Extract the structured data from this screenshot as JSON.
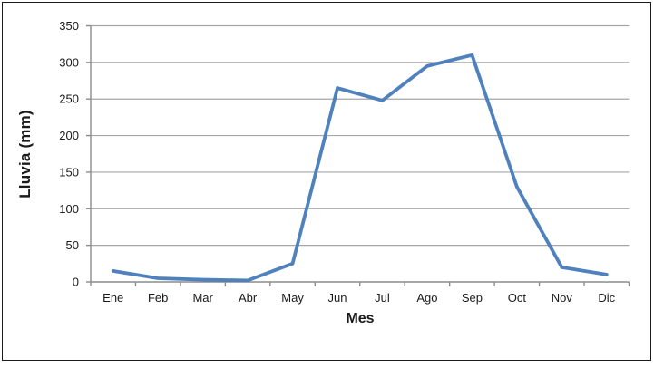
{
  "chart_data": {
    "type": "line",
    "title": "",
    "xlabel": "Mes",
    "ylabel": "Lluvia (mm)",
    "categories": [
      "Ene",
      "Feb",
      "Mar",
      "Abr",
      "May",
      "Jun",
      "Jul",
      "Ago",
      "Sep",
      "Oct",
      "Nov",
      "Dic"
    ],
    "values": [
      15,
      5,
      3,
      2,
      25,
      265,
      248,
      295,
      310,
      130,
      20,
      10
    ],
    "ylim": [
      0,
      350
    ],
    "yticks": [
      0,
      50,
      100,
      150,
      200,
      250,
      300,
      350
    ],
    "grid": true,
    "legend": false,
    "colors": {
      "line": "#4F81BD",
      "grid": "#A6A6A6",
      "axis": "#8C8C8C",
      "text": "#1A1A1A",
      "frame": "#1C1C1C",
      "background": "#FFFFFF"
    }
  }
}
